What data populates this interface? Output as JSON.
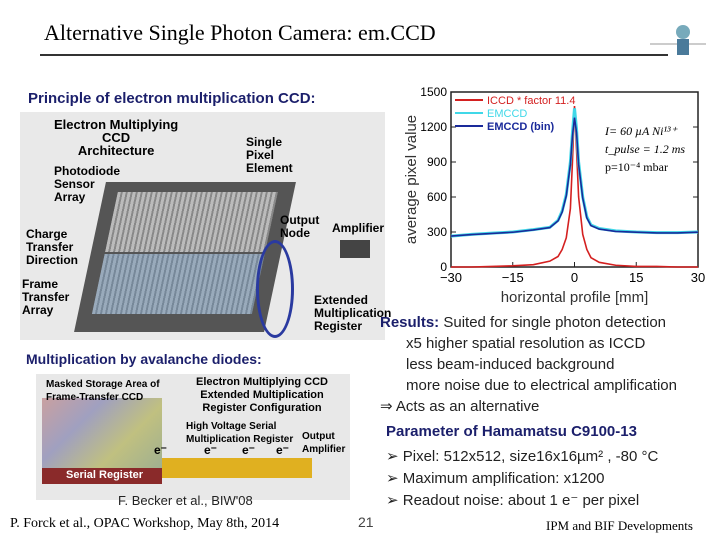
{
  "title": "Alternative Single Photon Camera: em.CCD",
  "principle": "Principle of electron multiplication CCD:",
  "ccd_figure": {
    "heading": [
      "Electron Multiplying",
      "CCD",
      "Architecture"
    ],
    "photodiode": [
      "Photodiode",
      "Sensor",
      "Array"
    ],
    "single_pixel": [
      "Single",
      "Pixel",
      "Element"
    ],
    "charge_transfer": [
      "Charge",
      "Transfer",
      "Direction"
    ],
    "output_node": [
      "Output",
      "Node"
    ],
    "amplifier": "Amplifier",
    "frame_transfer": [
      "Frame",
      "Transfer",
      "Array"
    ],
    "extended": [
      "Extended",
      "Multiplication",
      "Register"
    ]
  },
  "avalanche": "Multiplication by avalanche diodes:",
  "em_figure": {
    "masked": [
      "Masked Storage Area of",
      "Frame-Transfer CCD"
    ],
    "config": [
      "Electron Multiplying CCD",
      "Extended Multiplication",
      "Register Configuration"
    ],
    "hv": [
      "High Voltage Serial",
      "Multiplication Register"
    ],
    "output": [
      "Output",
      "Amplifier"
    ],
    "serial": "Serial Register",
    "electron": "e⁻"
  },
  "credit": "F. Becker et al., BIW'08",
  "results": {
    "label": "Results:",
    "first": " Suited for single photon detection",
    "lines": [
      "x5 higher spatial resolution as ICCD",
      "less beam-induced background",
      "more noise due to electrical amplification"
    ],
    "conclusion": "⇒ Acts as an alternative"
  },
  "parameter_title": "Parameter of Hamamatsu C9100-13",
  "bullets": [
    "Pixel: 512x512, size16x16µm² , -80 °C",
    "Maximum amplification: x1200",
    "Readout noise: about 1 e⁻ per pixel"
  ],
  "footer": {
    "left": "P. Forck et al., OPAC Workshop, May 8th, 2014",
    "page": "21",
    "right": "IPM and BIF Developments"
  },
  "chart_data": {
    "type": "line",
    "xlabel": "horizontal profile [mm]",
    "ylabel": "average pixel value",
    "xlim": [
      -30,
      30
    ],
    "ylim": [
      0,
      1500
    ],
    "xticks": [
      "−30",
      "−15",
      "0",
      "15",
      "30"
    ],
    "yticks": [
      "0",
      "300",
      "600",
      "900",
      "1200",
      "1500"
    ],
    "annotations": [
      "I= 60 µA Ni¹³⁺",
      "t_pulse = 1.2 ms",
      "p=10⁻⁴ mbar"
    ],
    "x": [
      -30,
      -25,
      -20,
      -15,
      -10,
      -6,
      -4,
      -3,
      -2,
      -1,
      -0.5,
      0,
      0.5,
      1,
      2,
      3,
      4,
      6,
      10,
      15,
      20,
      25,
      30
    ],
    "series": [
      {
        "name": "ICCD * factor 11.4",
        "color": "#d42020",
        "values": [
          0,
          0,
          5,
          10,
          20,
          50,
          90,
          150,
          250,
          500,
          900,
          1380,
          1000,
          600,
          280,
          150,
          80,
          40,
          15,
          5,
          5,
          0,
          0
        ]
      },
      {
        "name": "EMCCD",
        "color": "#40d8e8",
        "values": [
          265,
          280,
          290,
          300,
          320,
          340,
          400,
          480,
          620,
          900,
          1150,
          1360,
          1180,
          900,
          600,
          430,
          360,
          330,
          310,
          300,
          295,
          295,
          300
        ]
      },
      {
        "name": "EMCCD (bin)",
        "color": "#1a2a9a",
        "values": [
          265,
          278,
          288,
          298,
          318,
          338,
          395,
          470,
          610,
          880,
          1120,
          1280,
          1150,
          880,
          590,
          420,
          355,
          325,
          305,
          298,
          292,
          292,
          298
        ]
      }
    ]
  }
}
